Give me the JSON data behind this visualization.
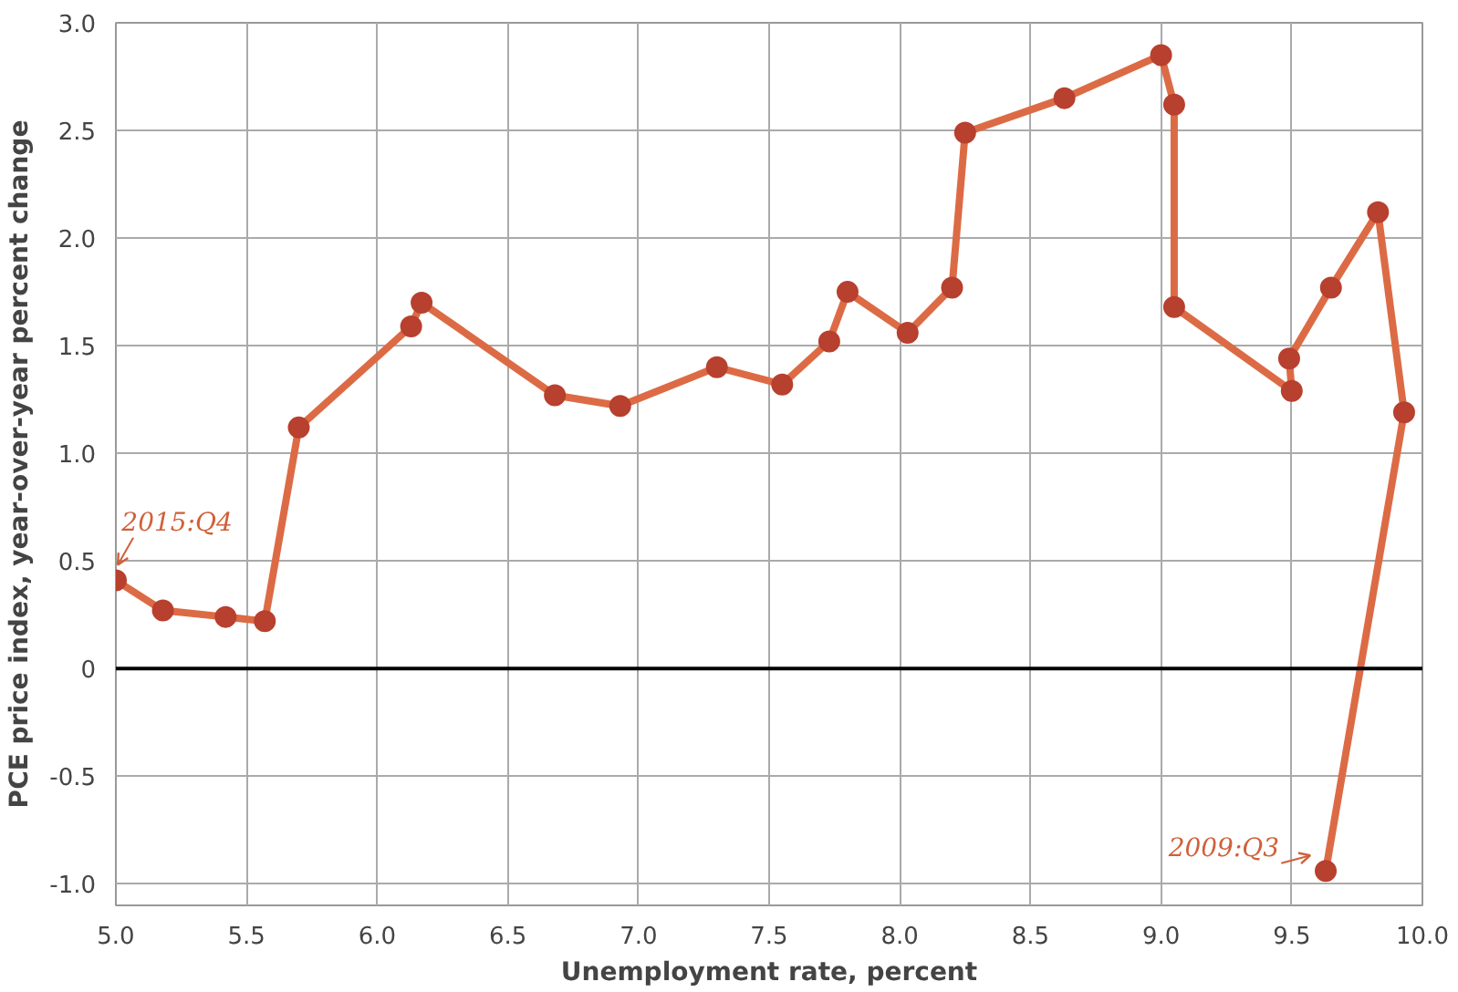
{
  "chart_data": {
    "type": "line",
    "xlabel": "Unemployment rate, percent",
    "ylabel": "PCE price index, year-over-year percent change",
    "series": [
      {
        "color": "#dc6b45",
        "x": [
          9.63,
          9.93,
          9.83,
          9.65,
          9.49,
          9.5,
          9.05,
          9.05,
          9.0,
          8.63,
          8.25,
          8.2,
          8.03,
          7.8,
          7.73,
          7.55,
          7.3,
          6.93,
          6.68,
          6.17,
          6.13,
          5.7,
          5.57,
          5.42,
          5.18,
          5.0
        ],
        "values": [
          -0.94,
          1.19,
          2.12,
          1.77,
          1.44,
          1.29,
          1.68,
          2.62,
          2.85,
          2.65,
          2.49,
          1.77,
          1.56,
          1.75,
          1.52,
          1.32,
          1.4,
          1.22,
          1.27,
          1.7,
          1.59,
          1.12,
          0.22,
          0.24,
          0.27,
          0.41
        ]
      }
    ],
    "xlim": [
      5.0,
      10.0
    ],
    "ylim": [
      -1.1,
      3.0
    ],
    "xticks": [
      {
        "value": 5.0,
        "label": "5.0"
      },
      {
        "value": 5.5,
        "label": "5.5"
      },
      {
        "value": 6.0,
        "label": "6.0"
      },
      {
        "value": 6.5,
        "label": "6.5"
      },
      {
        "value": 7.0,
        "label": "7.0"
      },
      {
        "value": 7.5,
        "label": "7.5"
      },
      {
        "value": 8.0,
        "label": "8.0"
      },
      {
        "value": 8.5,
        "label": "8.5"
      },
      {
        "value": 9.0,
        "label": "9.0"
      },
      {
        "value": 9.5,
        "label": "9.5"
      },
      {
        "value": 10.0,
        "label": "10.0"
      }
    ],
    "yticks": [
      {
        "value": -1.0,
        "label": "-1.0"
      },
      {
        "value": -0.5,
        "label": "-0.5"
      },
      0,
      {
        "value": 0.5,
        "label": "0.5"
      },
      {
        "value": 1.0,
        "label": "1.0"
      },
      {
        "value": 1.5,
        "label": "1.5"
      },
      {
        "value": 2.0,
        "label": "2.0"
      },
      {
        "value": 2.5,
        "label": "2.5"
      },
      {
        "value": 3.0,
        "label": "3.0"
      }
    ],
    "ref_lines": [
      {
        "axis": "y",
        "value": 0,
        "color": "#000000"
      }
    ],
    "annotations": [
      {
        "text": "2015:Q4",
        "x": 5.0,
        "y": 0.41
      },
      {
        "text": "2009:Q3",
        "x": 9.63,
        "y": -0.94
      }
    ],
    "grid": true,
    "marker": "circle",
    "line_style": "solid"
  }
}
